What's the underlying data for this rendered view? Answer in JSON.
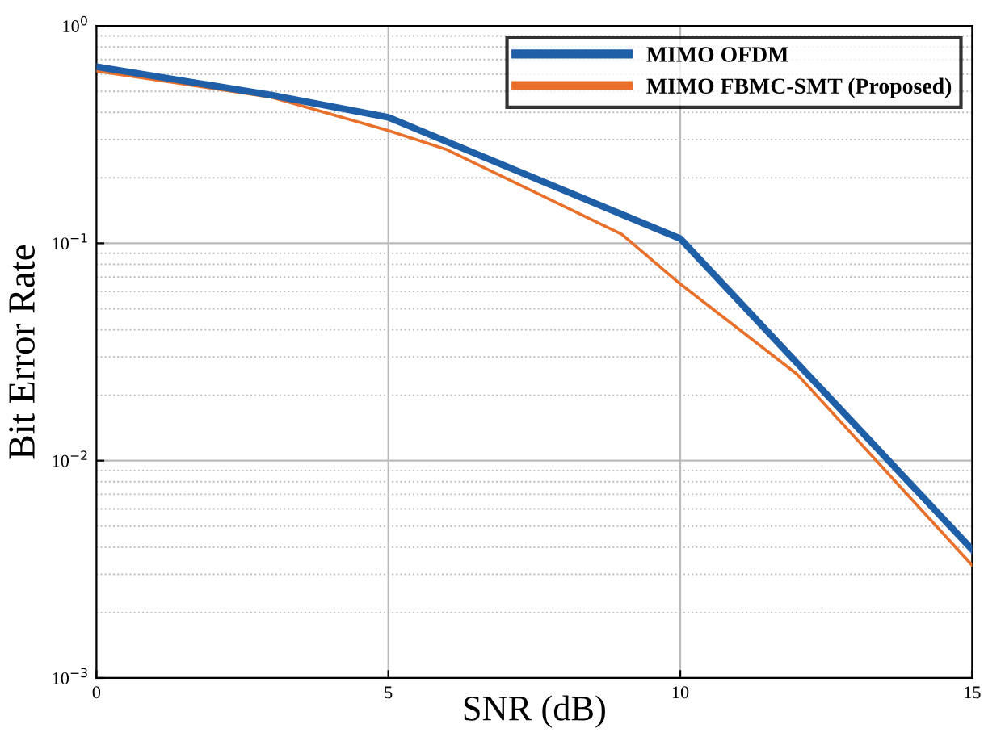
{
  "chart_data": {
    "type": "line",
    "xlabel": "SNR (dB)",
    "ylabel": "Bit Error Rate",
    "series": [
      {
        "name": "MIMO OFDM",
        "color": "#1f5fa8",
        "x": [
          0,
          3,
          5,
          10,
          15
        ],
        "values": [
          0.65,
          0.48,
          0.38,
          0.105,
          0.0039
        ]
      },
      {
        "name": "MIMO FBMC-SMT (Proposed)",
        "color": "#e8702a",
        "x": [
          0,
          3,
          5,
          6,
          9,
          10,
          12,
          15
        ],
        "values": [
          0.62,
          0.47,
          0.33,
          0.27,
          0.11,
          0.065,
          0.025,
          0.0033
        ]
      }
    ],
    "log": "y",
    "xlim": [
      0,
      15
    ],
    "xticks": [
      0,
      5,
      10,
      15
    ],
    "ylim": [
      0.001,
      1
    ],
    "yticks": [
      {
        "value": 0.001,
        "label": "10$^{−3}$"
      },
      {
        "value": 0.01,
        "label": "10$^{−2}$"
      },
      {
        "value": 0.1,
        "label": "10$^{−1}$"
      },
      {
        "value": 1,
        "label": "10$^{0}$"
      }
    ],
    "grid": true,
    "legend": "top right",
    "marker": "none",
    "line_style": "solid"
  }
}
